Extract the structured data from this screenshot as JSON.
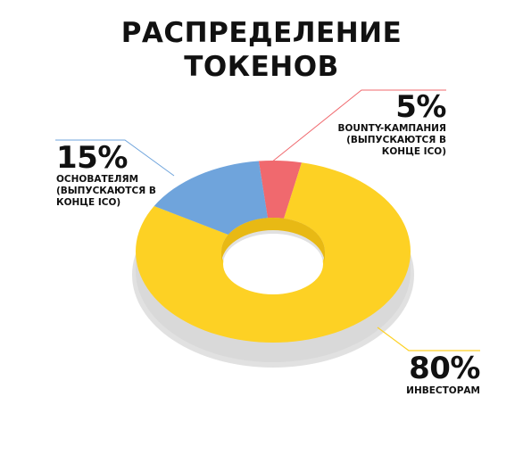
{
  "title": {
    "line1": "РАСПРЕДЕЛЕНИЕ",
    "line2": "ТОКЕНОВ"
  },
  "chart_data": {
    "type": "pie",
    "style": "3d-donut",
    "title": "РАСПРЕДЕЛЕНИЕ ТОКЕНОВ",
    "slices": [
      {
        "label": "ИНВЕСТОРАМ",
        "value": 80,
        "color": "#FDD124",
        "value_label": "80%",
        "note_lines": [
          "ИНВЕСТОРАМ"
        ]
      },
      {
        "label": "ОСНОВАТЕЛЯМ",
        "value": 15,
        "color": "#6FA4DC",
        "value_label": "15%",
        "note_lines": [
          "ОСНОВАТЕЛЯМ",
          "(ВЫПУСКАЮТСЯ В",
          "КОНЦЕ ICO)"
        ]
      },
      {
        "label": "BOUNTY-КАМПАНИЯ",
        "value": 5,
        "color": "#F0696E",
        "value_label": "5%",
        "note_lines": [
          "BOUNTY-КАМПАНИЯ",
          "(ВЫПУСКАЮТСЯ В",
          "КОНЦЕ ICO)"
        ]
      }
    ],
    "legend": "none"
  }
}
